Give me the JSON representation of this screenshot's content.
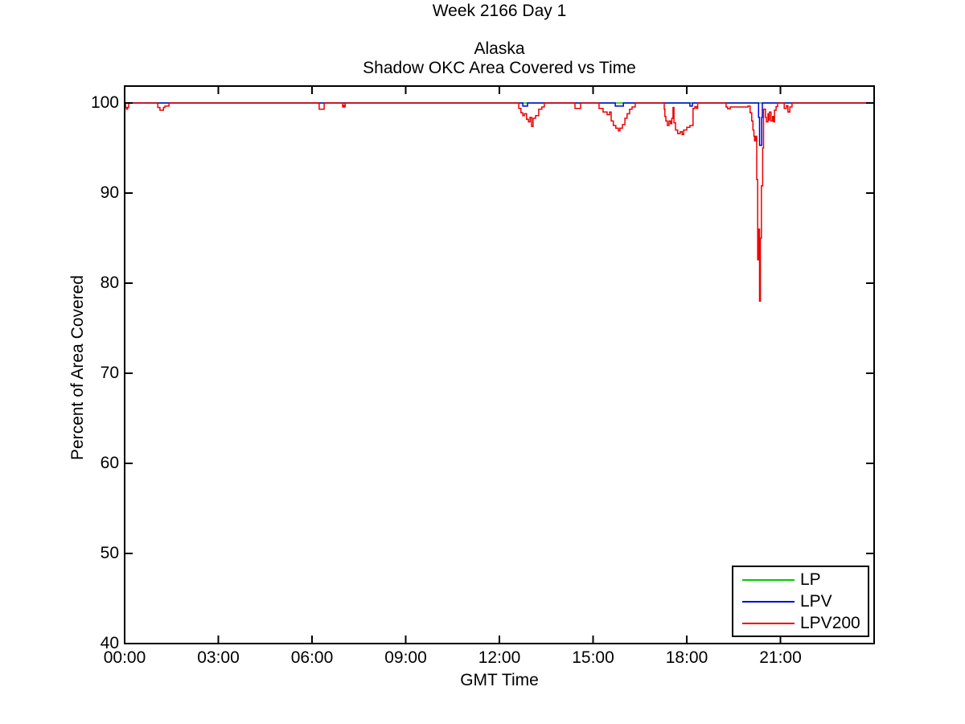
{
  "chart_data": {
    "type": "line",
    "super_title": "Week 2166 Day 1",
    "title_lines": [
      "Alaska",
      "Shadow OKC Area Covered vs Time"
    ],
    "xlabel": "GMT Time",
    "ylabel": "Percent of Area Covered",
    "xlim_hours": [
      0,
      24
    ],
    "ylim": [
      40,
      101.875
    ],
    "grid": false,
    "legend_position": "bottom-right-inside",
    "x_ticks": [
      {
        "hour": 0,
        "label": "00:00"
      },
      {
        "hour": 3,
        "label": "03:00"
      },
      {
        "hour": 6,
        "label": "06:00"
      },
      {
        "hour": 9,
        "label": "09:00"
      },
      {
        "hour": 12,
        "label": "12:00"
      },
      {
        "hour": 15,
        "label": "15:00"
      },
      {
        "hour": 18,
        "label": "18:00"
      },
      {
        "hour": 21,
        "label": "21:00"
      }
    ],
    "y_ticks": [
      {
        "value": 100,
        "label": "100"
      },
      {
        "value": 90,
        "label": "90"
      },
      {
        "value": 80,
        "label": "80"
      },
      {
        "value": 70,
        "label": "70"
      },
      {
        "value": 60,
        "label": "60"
      },
      {
        "value": 50,
        "label": "50"
      },
      {
        "value": 40,
        "label": "40"
      }
    ],
    "legend": [
      {
        "name": "LP",
        "color": "#00CC00"
      },
      {
        "name": "LPV",
        "color": "#0000DD"
      },
      {
        "name": "LPV200",
        "color": "#EE0000"
      }
    ],
    "series": [
      {
        "name": "LP",
        "color": "#00CC00",
        "points": [
          [
            0,
            100
          ],
          [
            24,
            100
          ]
        ]
      },
      {
        "name": "LPV",
        "color": "#0000DD",
        "points": [
          [
            0,
            100
          ],
          [
            12.75,
            100
          ],
          [
            12.75,
            99.65
          ],
          [
            12.9,
            99.65
          ],
          [
            12.9,
            100
          ],
          [
            15.71,
            100
          ],
          [
            15.71,
            99.65
          ],
          [
            15.97,
            99.65
          ],
          [
            15.97,
            100
          ],
          [
            18.1,
            100
          ],
          [
            18.1,
            99.65
          ],
          [
            18.18,
            99.65
          ],
          [
            18.18,
            100
          ],
          [
            20.3,
            100
          ],
          [
            20.3,
            98.4
          ],
          [
            20.33,
            98.4
          ],
          [
            20.33,
            95.3
          ],
          [
            20.4,
            95.3
          ],
          [
            20.4,
            98.4
          ],
          [
            20.42,
            98.4
          ],
          [
            20.42,
            100
          ],
          [
            24,
            100
          ]
        ]
      },
      {
        "name": "LPV200",
        "color": "#EE0000",
        "points": [
          [
            0,
            100
          ],
          [
            0.03,
            100
          ],
          [
            0.03,
            99.5
          ],
          [
            0.06,
            99.5
          ],
          [
            0.06,
            99.3
          ],
          [
            0.09,
            99.3
          ],
          [
            0.09,
            99.5
          ],
          [
            0.13,
            99.5
          ],
          [
            0.13,
            100
          ],
          [
            1.06,
            100
          ],
          [
            1.06,
            99.5
          ],
          [
            1.13,
            99.5
          ],
          [
            1.13,
            99.2
          ],
          [
            1.24,
            99.2
          ],
          [
            1.24,
            99.5
          ],
          [
            1.29,
            99.5
          ],
          [
            1.29,
            99.65
          ],
          [
            1.42,
            99.65
          ],
          [
            1.42,
            100
          ],
          [
            6.23,
            100
          ],
          [
            6.23,
            99.3
          ],
          [
            6.39,
            99.3
          ],
          [
            6.39,
            100
          ],
          [
            6.98,
            100
          ],
          [
            6.98,
            99.55
          ],
          [
            7.0,
            99.55
          ],
          [
            7.0,
            99.75
          ],
          [
            7.02,
            99.75
          ],
          [
            7.02,
            99.55
          ],
          [
            7.06,
            99.55
          ],
          [
            7.06,
            100
          ],
          [
            12.62,
            100
          ],
          [
            12.62,
            99.4
          ],
          [
            12.69,
            99.4
          ],
          [
            12.69,
            98.9
          ],
          [
            12.75,
            98.9
          ],
          [
            12.75,
            98.6
          ],
          [
            12.8,
            98.6
          ],
          [
            12.8,
            98.8
          ],
          [
            12.87,
            98.8
          ],
          [
            12.87,
            98.2
          ],
          [
            12.93,
            98.2
          ],
          [
            12.93,
            97.9
          ],
          [
            12.98,
            97.9
          ],
          [
            12.98,
            98.4
          ],
          [
            13.03,
            98.4
          ],
          [
            13.03,
            97.4
          ],
          [
            13.08,
            97.4
          ],
          [
            13.08,
            98.3
          ],
          [
            13.16,
            98.3
          ],
          [
            13.16,
            98.6
          ],
          [
            13.26,
            98.6
          ],
          [
            13.26,
            99.3
          ],
          [
            13.36,
            99.3
          ],
          [
            13.36,
            99.55
          ],
          [
            13.44,
            99.55
          ],
          [
            13.44,
            100
          ],
          [
            14.42,
            100
          ],
          [
            14.42,
            99.4
          ],
          [
            14.6,
            99.4
          ],
          [
            14.6,
            100
          ],
          [
            15.19,
            100
          ],
          [
            15.19,
            99.4
          ],
          [
            15.32,
            99.4
          ],
          [
            15.32,
            99.0
          ],
          [
            15.45,
            99.0
          ],
          [
            15.45,
            98.7
          ],
          [
            15.53,
            98.7
          ],
          [
            15.53,
            99.0
          ],
          [
            15.58,
            99.0
          ],
          [
            15.58,
            98.0
          ],
          [
            15.65,
            98.0
          ],
          [
            15.65,
            97.5
          ],
          [
            15.73,
            97.5
          ],
          [
            15.73,
            97.2
          ],
          [
            15.81,
            97.2
          ],
          [
            15.81,
            96.9
          ],
          [
            15.86,
            96.9
          ],
          [
            15.86,
            97.2
          ],
          [
            15.94,
            97.2
          ],
          [
            15.94,
            97.6
          ],
          [
            16.02,
            97.6
          ],
          [
            16.02,
            98.3
          ],
          [
            16.09,
            98.3
          ],
          [
            16.09,
            98.8
          ],
          [
            16.17,
            98.8
          ],
          [
            16.17,
            99.3
          ],
          [
            16.25,
            99.3
          ],
          [
            16.25,
            99.55
          ],
          [
            16.35,
            99.55
          ],
          [
            16.35,
            100
          ],
          [
            17.28,
            100
          ],
          [
            17.28,
            99.3
          ],
          [
            17.3,
            99.3
          ],
          [
            17.3,
            98.5
          ],
          [
            17.33,
            98.5
          ],
          [
            17.33,
            98.0
          ],
          [
            17.38,
            98.0
          ],
          [
            17.38,
            97.5
          ],
          [
            17.43,
            97.5
          ],
          [
            17.43,
            98.0
          ],
          [
            17.48,
            98.0
          ],
          [
            17.48,
            97.7
          ],
          [
            17.52,
            97.7
          ],
          [
            17.52,
            98.3
          ],
          [
            17.56,
            98.3
          ],
          [
            17.56,
            99.5
          ],
          [
            17.59,
            99.5
          ],
          [
            17.59,
            97.8
          ],
          [
            17.64,
            97.8
          ],
          [
            17.64,
            97.0
          ],
          [
            17.71,
            97.0
          ],
          [
            17.71,
            96.6
          ],
          [
            17.79,
            96.6
          ],
          [
            17.79,
            96.8
          ],
          [
            17.85,
            96.8
          ],
          [
            17.85,
            96.5
          ],
          [
            17.9,
            96.5
          ],
          [
            17.9,
            97.0
          ],
          [
            18.0,
            97.0
          ],
          [
            18.0,
            97.3
          ],
          [
            18.1,
            97.3
          ],
          [
            18.1,
            97.5
          ],
          [
            18.2,
            97.5
          ],
          [
            18.2,
            99.4
          ],
          [
            18.26,
            99.4
          ],
          [
            18.26,
            99.6
          ],
          [
            18.31,
            99.6
          ],
          [
            18.31,
            99.4
          ],
          [
            18.35,
            99.4
          ],
          [
            18.35,
            100
          ],
          [
            19.26,
            100
          ],
          [
            19.26,
            99.55
          ],
          [
            19.31,
            99.55
          ],
          [
            19.31,
            99.35
          ],
          [
            19.39,
            99.35
          ],
          [
            19.39,
            99.55
          ],
          [
            19.96,
            99.55
          ],
          [
            19.96,
            99.65
          ],
          [
            20.03,
            99.65
          ],
          [
            20.03,
            98.9
          ],
          [
            20.08,
            98.9
          ],
          [
            20.08,
            98.0
          ],
          [
            20.12,
            98.0
          ],
          [
            20.12,
            97.0
          ],
          [
            20.15,
            97.0
          ],
          [
            20.15,
            96.3
          ],
          [
            20.17,
            96.3
          ],
          [
            20.17,
            95.8
          ],
          [
            20.21,
            95.8
          ],
          [
            20.21,
            96.3
          ],
          [
            20.24,
            96.3
          ],
          [
            20.24,
            91.5
          ],
          [
            20.27,
            91.5
          ],
          [
            20.27,
            82.6
          ],
          [
            20.3,
            82.6
          ],
          [
            20.3,
            86.0
          ],
          [
            20.33,
            86.0
          ],
          [
            20.33,
            78.0
          ],
          [
            20.36,
            78.0
          ],
          [
            20.36,
            85.0
          ],
          [
            20.39,
            85.0
          ],
          [
            20.39,
            90.8
          ],
          [
            20.43,
            90.8
          ],
          [
            20.43,
            95.0
          ],
          [
            20.46,
            95.0
          ],
          [
            20.46,
            99.3
          ],
          [
            20.52,
            99.3
          ],
          [
            20.52,
            98.4
          ],
          [
            20.55,
            98.4
          ],
          [
            20.55,
            97.9
          ],
          [
            20.6,
            97.9
          ],
          [
            20.6,
            98.8
          ],
          [
            20.62,
            98.8
          ],
          [
            20.62,
            98.1
          ],
          [
            20.65,
            98.1
          ],
          [
            20.65,
            99.0
          ],
          [
            20.7,
            99.0
          ],
          [
            20.7,
            98.0
          ],
          [
            20.75,
            98.0
          ],
          [
            20.75,
            98.5
          ],
          [
            20.78,
            98.5
          ],
          [
            20.78,
            97.9
          ],
          [
            20.81,
            97.9
          ],
          [
            20.81,
            99.2
          ],
          [
            20.86,
            99.2
          ],
          [
            20.86,
            99.6
          ],
          [
            20.91,
            99.6
          ],
          [
            20.91,
            100
          ],
          [
            21.12,
            100
          ],
          [
            21.12,
            99.4
          ],
          [
            21.19,
            99.4
          ],
          [
            21.19,
            99.7
          ],
          [
            21.24,
            99.7
          ],
          [
            21.24,
            99.0
          ],
          [
            21.3,
            99.0
          ],
          [
            21.3,
            99.55
          ],
          [
            21.37,
            99.55
          ],
          [
            21.37,
            100
          ],
          [
            24,
            100
          ]
        ]
      }
    ]
  }
}
